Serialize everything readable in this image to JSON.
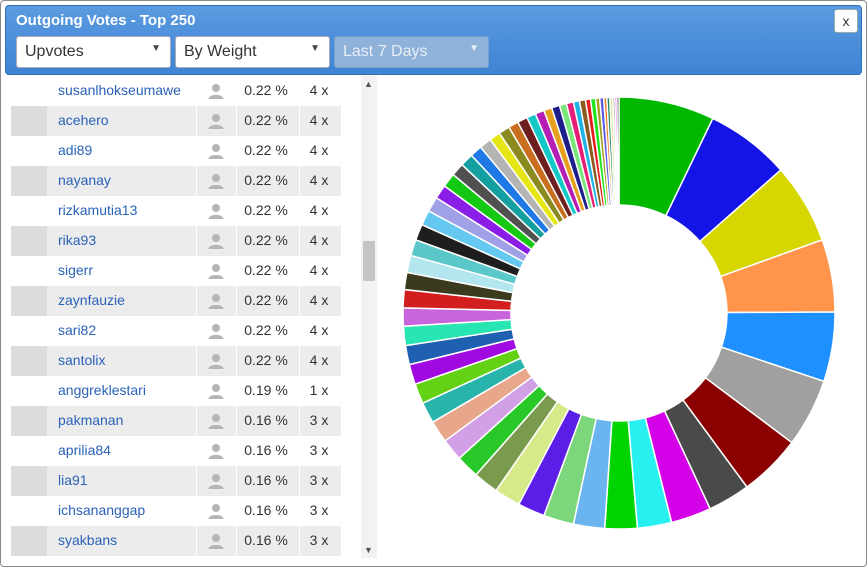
{
  "window": {
    "title": "Outgoing Votes - Top 250",
    "close_label": "x"
  },
  "filters": {
    "vote_type": "Upvotes",
    "sort": "By Weight",
    "period": "Last 7 Days"
  },
  "table": {
    "rows": [
      {
        "name": "susanlhokseumawe",
        "pct": "0.22 %",
        "count": "4 x"
      },
      {
        "name": "acehero",
        "pct": "0.22 %",
        "count": "4 x"
      },
      {
        "name": "adi89",
        "pct": "0.22 %",
        "count": "4 x"
      },
      {
        "name": "nayanay",
        "pct": "0.22 %",
        "count": "4 x"
      },
      {
        "name": "rizkamutia13",
        "pct": "0.22 %",
        "count": "4 x"
      },
      {
        "name": "rika93",
        "pct": "0.22 %",
        "count": "4 x"
      },
      {
        "name": "sigerr",
        "pct": "0.22 %",
        "count": "4 x"
      },
      {
        "name": "zaynfauzie",
        "pct": "0.22 %",
        "count": "4 x"
      },
      {
        "name": "sari82",
        "pct": "0.22 %",
        "count": "4 x"
      },
      {
        "name": "santolix",
        "pct": "0.22 %",
        "count": "4 x"
      },
      {
        "name": "anggreklestari",
        "pct": "0.19 %",
        "count": "1 x"
      },
      {
        "name": "pakmanan",
        "pct": "0.16 %",
        "count": "3 x"
      },
      {
        "name": "aprilia84",
        "pct": "0.16 %",
        "count": "3 x"
      },
      {
        "name": "lia91",
        "pct": "0.16 %",
        "count": "3 x"
      },
      {
        "name": "ichsananggap",
        "pct": "0.16 %",
        "count": "3 x"
      },
      {
        "name": "syakbans",
        "pct": "0.16 %",
        "count": "3 x"
      }
    ]
  },
  "chart_data": {
    "type": "pie",
    "donut": true,
    "title": "",
    "values": [
      9.5,
      8.4,
      8.0,
      7.2,
      6.9,
      6.8,
      6.2,
      4.2,
      4.0,
      3.4,
      3.2,
      3.1,
      3.0,
      2.7,
      2.6,
      2.5,
      2.3,
      2.2,
      2.2,
      2.1,
      2.0,
      2.0,
      1.9,
      1.9,
      1.8,
      1.8,
      1.7,
      1.7,
      1.6,
      1.6,
      1.5,
      1.5,
      1.4,
      1.4,
      1.3,
      1.3,
      1.2,
      1.2,
      1.1,
      1.1,
      1.0,
      1.0,
      0.9,
      0.9,
      0.8,
      0.8,
      0.7,
      0.7,
      0.6,
      0.6,
      0.5,
      0.5,
      0.4,
      0.4,
      0.3,
      0.3,
      0.3,
      0.2,
      0.2,
      0.2
    ],
    "colors": [
      "#00b800",
      "#1414e6",
      "#d6d600",
      "#ff944a",
      "#1e90ff",
      "#a0a0a0",
      "#8b0000",
      "#4a4a4a",
      "#d400e8",
      "#28f0f0",
      "#00d400",
      "#6ab4f0",
      "#7cd67c",
      "#5a1ee6",
      "#d6ea8a",
      "#7a9a4e",
      "#28c828",
      "#d2a0e6",
      "#e8a68a",
      "#28b4aa",
      "#64d214",
      "#a00ae0",
      "#2060b0",
      "#28e6b4",
      "#c864dc",
      "#d21e1e",
      "#3a3a1e",
      "#b4e6f0",
      "#5ac8c8",
      "#1e1e1e",
      "#64c8f0",
      "#a0a0e6",
      "#8a1ee6",
      "#14c814",
      "#505050",
      "#14a0a0",
      "#1e78e6",
      "#b4b4b4",
      "#e6e614",
      "#8a8a1e",
      "#c86e1e",
      "#6e1e1e",
      "#14c8c8",
      "#b41eb4",
      "#e6a01e",
      "#1e1e8a",
      "#78e678",
      "#e61e78",
      "#1eb4e6",
      "#8a5a1e",
      "#e61e1e",
      "#1ee61e",
      "#a0a01e",
      "#5a5ae6",
      "#e6781e",
      "#1e8a5a",
      "#e6e6a0",
      "#6e6e6e",
      "#e61ee6",
      "#000000"
    ]
  }
}
